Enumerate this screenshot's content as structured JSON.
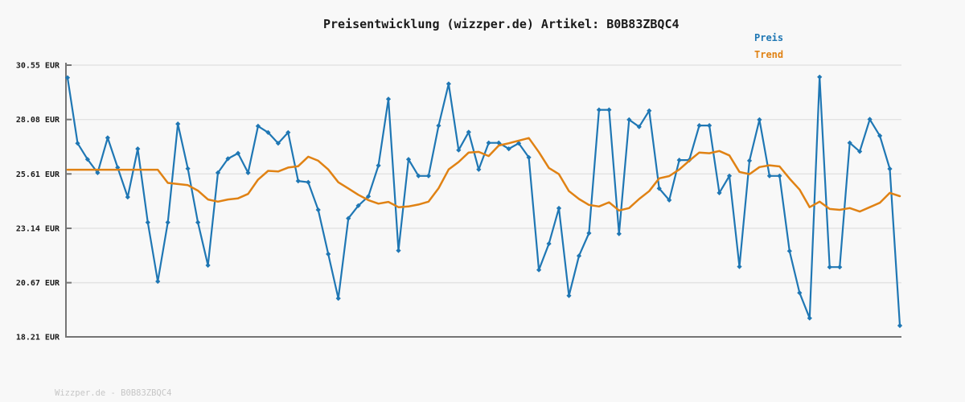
{
  "title": "Preisentwicklung (wizzper.de) Artikel: B0B83ZBQC4",
  "footer": "Wizzper.de - B0B83ZBQC4",
  "legend": [
    {
      "label": "Preis",
      "color": "#1f77b4"
    },
    {
      "label": "Trend",
      "color": "#e08214"
    }
  ],
  "colors": {
    "background": "#f8f8f8",
    "grid": "#e2e2e2",
    "axis": "#757575",
    "tick_label": "#1a1a1a",
    "footer_text": "#c6c6c6"
  },
  "chart_data": {
    "type": "line",
    "title": "Preisentwicklung (wizzper.de) Artikel: B0B83ZBQC4",
    "currency": "EUR",
    "xlabel": "",
    "ylabel": "",
    "x_axis_labels": "none",
    "grid": "horizontal",
    "legend_position": "top-right-outside",
    "ylim": [
      18.21,
      30.55
    ],
    "yticks": [
      {
        "label": "30.55 EUR",
        "value": 30.55
      },
      {
        "label": "28.08 EUR",
        "value": 28.08
      },
      {
        "label": "25.61 EUR",
        "value": 25.61
      },
      {
        "label": "23.14 EUR",
        "value": 23.14
      },
      {
        "label": "20.67 EUR",
        "value": 20.67
      },
      {
        "label": "18.21 EUR",
        "value": 18.21
      }
    ],
    "series": [
      {
        "name": "Preis",
        "color": "#1f77b4",
        "marker": "diamond",
        "values": [
          29.98,
          27.0,
          26.27,
          25.66,
          27.25,
          25.9,
          24.56,
          26.75,
          23.41,
          20.73,
          23.41,
          27.88,
          25.85,
          23.41,
          21.46,
          25.66,
          26.3,
          26.55,
          25.66,
          27.78,
          27.49,
          27.0,
          27.49,
          25.29,
          25.23,
          23.98,
          21.97,
          19.96,
          23.59,
          24.17,
          24.59,
          25.99,
          29.01,
          22.13,
          26.27,
          25.52,
          25.52,
          27.8,
          29.7,
          26.69,
          27.51,
          25.81,
          27.02,
          27.02,
          26.75,
          27.0,
          26.36,
          21.25,
          22.44,
          24.05,
          20.08,
          21.89,
          22.92,
          28.52,
          28.52,
          22.89,
          28.07,
          27.75,
          28.48,
          24.95,
          24.42,
          26.24,
          26.24,
          27.81,
          27.81,
          24.75,
          25.52,
          21.4,
          26.21,
          28.07,
          25.52,
          25.52,
          22.11,
          20.21,
          19.06,
          30.01,
          21.38,
          21.38,
          27.02,
          26.63,
          28.09,
          27.34,
          25.84,
          18.72
        ]
      },
      {
        "name": "Trend",
        "color": "#e08214",
        "marker": "none",
        "values": [
          25.8,
          25.8,
          25.8,
          25.8,
          25.8,
          25.8,
          25.8,
          25.8,
          25.8,
          25.8,
          25.2,
          25.15,
          25.1,
          24.85,
          24.45,
          24.35,
          24.45,
          24.5,
          24.7,
          25.35,
          25.75,
          25.72,
          25.9,
          25.96,
          26.39,
          26.21,
          25.81,
          25.23,
          24.95,
          24.66,
          24.42,
          24.26,
          24.34,
          24.1,
          24.13,
          24.22,
          24.35,
          24.96,
          25.81,
          26.15,
          26.58,
          26.61,
          26.42,
          26.9,
          27.0,
          27.12,
          27.24,
          26.6,
          25.88,
          25.6,
          24.83,
          24.47,
          24.2,
          24.13,
          24.32,
          23.95,
          24.06,
          24.47,
          24.83,
          25.41,
          25.51,
          25.81,
          26.21,
          26.58,
          26.55,
          26.65,
          26.45,
          25.7,
          25.6,
          25.92,
          26.0,
          25.95,
          25.4,
          24.9,
          24.1,
          24.35,
          24.02,
          23.98,
          24.06,
          23.9,
          24.1,
          24.3,
          24.75,
          24.6
        ]
      }
    ]
  }
}
